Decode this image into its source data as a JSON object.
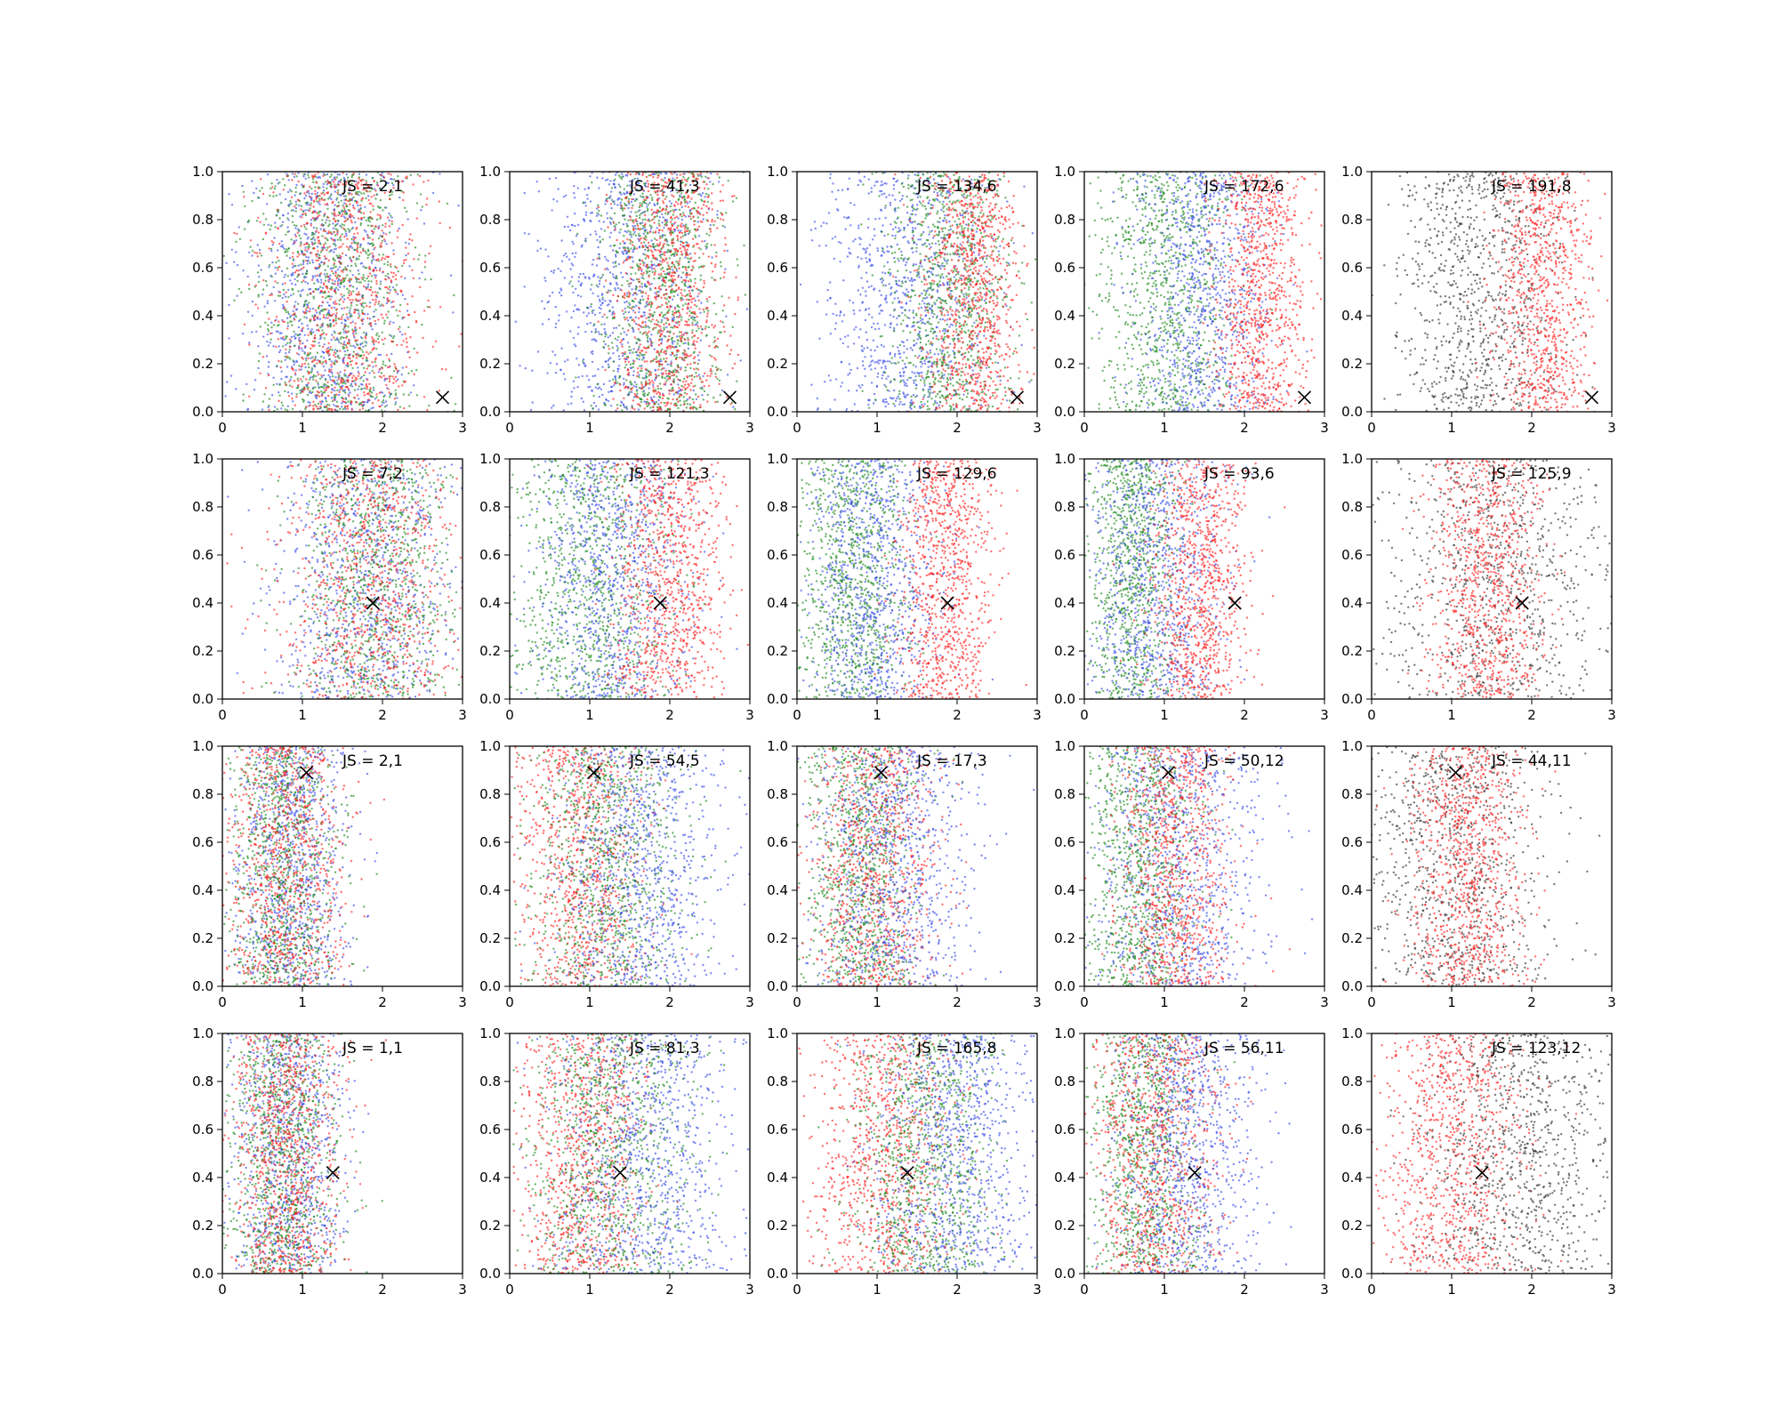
{
  "chart_data": {
    "type": "scatter",
    "layout": {
      "rows": 4,
      "cols": 5
    },
    "xlim": [
      0,
      3
    ],
    "ylim": [
      0,
      1.0
    ],
    "xticks": [
      0,
      1,
      2,
      3
    ],
    "yticks": [
      0.0,
      0.2,
      0.4,
      0.6,
      0.8,
      1.0
    ],
    "xtick_labels": [
      "0",
      "1",
      "2",
      "3"
    ],
    "ytick_labels": [
      "0.0",
      "0.2",
      "0.4",
      "0.6",
      "0.8",
      "1.0"
    ],
    "grid": false,
    "colors": {
      "red": "#ff2020",
      "green": "#1f8a1f",
      "blue": "#3a4ee8",
      "black": "#333333"
    },
    "panels": [
      {
        "row": 0,
        "col": 0,
        "label": "JS = 2,1",
        "marker": {
          "x": 2.75,
          "y": 0.06
        },
        "clusters": [
          {
            "color": "blue",
            "mx": 1.3,
            "sx": 0.5
          },
          {
            "color": "green",
            "mx": 1.45,
            "sx": 0.5
          },
          {
            "color": "red",
            "mx": 1.55,
            "sx": 0.5
          }
        ]
      },
      {
        "row": 0,
        "col": 1,
        "label": "JS = 41,3",
        "marker": {
          "x": 2.75,
          "y": 0.06
        },
        "clusters": [
          {
            "color": "blue",
            "mx": 1.5,
            "sx": 0.55
          },
          {
            "color": "green",
            "mx": 1.9,
            "sx": 0.4
          },
          {
            "color": "red",
            "mx": 2.0,
            "sx": 0.35
          }
        ]
      },
      {
        "row": 0,
        "col": 2,
        "label": "JS = 134,6",
        "marker": {
          "x": 2.75,
          "y": 0.06
        },
        "clusters": [
          {
            "color": "blue",
            "mx": 1.4,
            "sx": 0.55
          },
          {
            "color": "green",
            "mx": 1.9,
            "sx": 0.4
          },
          {
            "color": "red",
            "mx": 2.2,
            "sx": 0.3
          }
        ]
      },
      {
        "row": 0,
        "col": 3,
        "label": "JS = 172,6",
        "marker": {
          "x": 2.75,
          "y": 0.06
        },
        "clusters": [
          {
            "color": "green",
            "mx": 1.0,
            "sx": 0.45
          },
          {
            "color": "blue",
            "mx": 1.5,
            "sx": 0.4
          },
          {
            "color": "red",
            "mx": 2.2,
            "sx": 0.28
          }
        ]
      },
      {
        "row": 0,
        "col": 4,
        "label": "JS = 191,8",
        "marker": {
          "x": 2.75,
          "y": 0.06
        },
        "clusters": [
          {
            "color": "black",
            "mx": 1.3,
            "sx": 0.5
          },
          {
            "color": "red",
            "mx": 2.15,
            "sx": 0.3
          }
        ]
      },
      {
        "row": 1,
        "col": 0,
        "label": "JS = 7,2",
        "marker": {
          "x": 1.88,
          "y": 0.4
        },
        "clusters": [
          {
            "color": "blue",
            "mx": 1.8,
            "sx": 0.55
          },
          {
            "color": "green",
            "mx": 1.9,
            "sx": 0.5
          },
          {
            "color": "red",
            "mx": 1.85,
            "sx": 0.55
          }
        ]
      },
      {
        "row": 1,
        "col": 1,
        "label": "JS = 121,3",
        "marker": {
          "x": 1.88,
          "y": 0.4
        },
        "clusters": [
          {
            "color": "green",
            "mx": 1.0,
            "sx": 0.5
          },
          {
            "color": "blue",
            "mx": 1.3,
            "sx": 0.5
          },
          {
            "color": "red",
            "mx": 2.0,
            "sx": 0.35
          }
        ]
      },
      {
        "row": 1,
        "col": 2,
        "label": "JS = 129,6",
        "marker": {
          "x": 1.88,
          "y": 0.4
        },
        "clusters": [
          {
            "color": "green",
            "mx": 0.7,
            "sx": 0.35
          },
          {
            "color": "blue",
            "mx": 0.95,
            "sx": 0.4
          },
          {
            "color": "red",
            "mx": 1.85,
            "sx": 0.3
          }
        ]
      },
      {
        "row": 1,
        "col": 3,
        "label": "JS = 93,6",
        "marker": {
          "x": 1.88,
          "y": 0.4
        },
        "clusters": [
          {
            "color": "green",
            "mx": 0.6,
            "sx": 0.3
          },
          {
            "color": "blue",
            "mx": 0.9,
            "sx": 0.45
          },
          {
            "color": "red",
            "mx": 1.45,
            "sx": 0.3
          }
        ]
      },
      {
        "row": 1,
        "col": 4,
        "label": "JS = 125,9",
        "marker": {
          "x": 1.88,
          "y": 0.4
        },
        "clusters": [
          {
            "color": "black",
            "mx": 1.6,
            "sx": 0.75
          },
          {
            "color": "red",
            "mx": 1.45,
            "sx": 0.35
          }
        ]
      },
      {
        "row": 2,
        "col": 0,
        "label": "JS = 2,1",
        "marker": {
          "x": 1.05,
          "y": 0.89
        },
        "clusters": [
          {
            "color": "blue",
            "mx": 0.85,
            "sx": 0.35
          },
          {
            "color": "green",
            "mx": 0.75,
            "sx": 0.35
          },
          {
            "color": "red",
            "mx": 0.8,
            "sx": 0.4
          }
        ]
      },
      {
        "row": 2,
        "col": 1,
        "label": "JS = 54,5",
        "marker": {
          "x": 1.05,
          "y": 0.89
        },
        "clusters": [
          {
            "color": "red",
            "mx": 0.9,
            "sx": 0.4
          },
          {
            "color": "green",
            "mx": 1.2,
            "sx": 0.45
          },
          {
            "color": "blue",
            "mx": 1.6,
            "sx": 0.5
          }
        ]
      },
      {
        "row": 2,
        "col": 2,
        "label": "JS = 17,3",
        "marker": {
          "x": 1.05,
          "y": 0.89
        },
        "clusters": [
          {
            "color": "green",
            "mx": 0.8,
            "sx": 0.35
          },
          {
            "color": "red",
            "mx": 0.95,
            "sx": 0.4
          },
          {
            "color": "blue",
            "mx": 1.2,
            "sx": 0.5
          }
        ]
      },
      {
        "row": 2,
        "col": 3,
        "label": "JS = 50,12",
        "marker": {
          "x": 1.05,
          "y": 0.89
        },
        "clusters": [
          {
            "color": "green",
            "mx": 0.7,
            "sx": 0.35
          },
          {
            "color": "blue",
            "mx": 1.2,
            "sx": 0.55
          },
          {
            "color": "red",
            "mx": 1.15,
            "sx": 0.35
          }
        ]
      },
      {
        "row": 2,
        "col": 4,
        "label": "JS = 44,11",
        "marker": {
          "x": 1.05,
          "y": 0.89
        },
        "clusters": [
          {
            "color": "black",
            "mx": 1.0,
            "sx": 0.6
          },
          {
            "color": "red",
            "mx": 1.2,
            "sx": 0.35
          }
        ]
      },
      {
        "row": 3,
        "col": 0,
        "label": "JS = 1,1",
        "marker": {
          "x": 1.38,
          "y": 0.42
        },
        "clusters": [
          {
            "color": "blue",
            "mx": 0.85,
            "sx": 0.35
          },
          {
            "color": "green",
            "mx": 0.75,
            "sx": 0.35
          },
          {
            "color": "red",
            "mx": 0.8,
            "sx": 0.35
          }
        ]
      },
      {
        "row": 3,
        "col": 1,
        "label": "JS = 81,3",
        "marker": {
          "x": 1.38,
          "y": 0.42
        },
        "clusters": [
          {
            "color": "red",
            "mx": 0.9,
            "sx": 0.4
          },
          {
            "color": "green",
            "mx": 1.3,
            "sx": 0.5
          },
          {
            "color": "blue",
            "mx": 1.7,
            "sx": 0.55
          }
        ]
      },
      {
        "row": 3,
        "col": 2,
        "label": "JS = 165,8",
        "marker": {
          "x": 1.38,
          "y": 0.42
        },
        "clusters": [
          {
            "color": "red",
            "mx": 1.1,
            "sx": 0.45
          },
          {
            "color": "green",
            "mx": 1.6,
            "sx": 0.45
          },
          {
            "color": "blue",
            "mx": 2.0,
            "sx": 0.5
          }
        ]
      },
      {
        "row": 3,
        "col": 3,
        "label": "JS = 56,11",
        "marker": {
          "x": 1.38,
          "y": 0.42
        },
        "clusters": [
          {
            "color": "green",
            "mx": 0.75,
            "sx": 0.35
          },
          {
            "color": "red",
            "mx": 0.9,
            "sx": 0.4
          },
          {
            "color": "blue",
            "mx": 1.3,
            "sx": 0.45
          }
        ]
      },
      {
        "row": 3,
        "col": 4,
        "label": "JS = 123,12",
        "marker": {
          "x": 1.38,
          "y": 0.42
        },
        "clusters": [
          {
            "color": "red",
            "mx": 1.0,
            "sx": 0.45
          },
          {
            "color": "black",
            "mx": 1.9,
            "sx": 0.6
          }
        ]
      }
    ]
  }
}
